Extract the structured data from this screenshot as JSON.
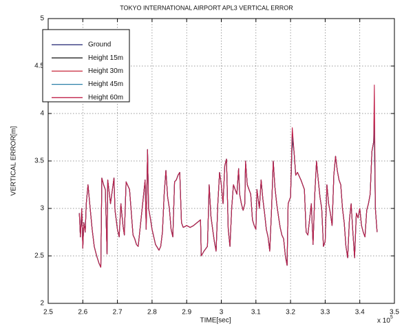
{
  "chart_data": {
    "type": "line",
    "title": "TOKYO INTERNATIONAL AIRPORT APL3 VERTICAL ERROR",
    "x_label": "TIME[sec]",
    "y_label": "VERTICAL ERROR[m]",
    "x_multiplier": {
      "base": "x 10",
      "exponent": "5"
    },
    "xlim": [
      2.5,
      3.5
    ],
    "xticks": [
      2.5,
      2.6,
      2.7,
      2.8,
      2.9,
      3,
      3.1,
      3.2,
      3.3,
      3.4,
      3.5
    ],
    "ylim": [
      2,
      5
    ],
    "yticks": [
      2,
      2.5,
      3,
      3.5,
      4,
      4.5,
      5
    ],
    "grid": true,
    "legend": "upper left",
    "x": [
      2.59,
      2.593,
      2.597,
      2.6,
      2.603,
      2.607,
      2.61,
      2.615,
      2.62,
      2.627,
      2.633,
      2.64,
      2.647,
      2.652,
      2.655,
      2.66,
      2.665,
      2.67,
      2.672,
      2.68,
      2.69,
      2.693,
      2.7,
      2.705,
      2.71,
      2.716,
      2.72,
      2.725,
      2.735,
      2.745,
      2.75,
      2.755,
      2.76,
      2.77,
      2.78,
      2.783,
      2.787,
      2.79,
      2.795,
      2.8,
      2.81,
      2.82,
      2.825,
      2.83,
      2.835,
      2.84,
      2.845,
      2.85,
      2.855,
      2.86,
      2.865,
      2.87,
      2.875,
      2.88,
      2.885,
      2.89,
      2.9,
      2.91,
      2.92,
      2.93,
      2.94,
      2.942,
      2.95,
      2.96,
      2.965,
      2.97,
      2.975,
      2.98,
      2.985,
      2.99,
      2.995,
      3.0,
      3.005,
      3.01,
      3.015,
      3.02,
      3.025,
      3.03,
      3.035,
      3.04,
      3.045,
      3.05,
      3.053,
      3.058,
      3.063,
      3.068,
      3.07,
      3.075,
      3.085,
      3.09,
      3.095,
      3.1,
      3.103,
      3.11,
      3.115,
      3.12,
      3.125,
      3.13,
      3.135,
      3.14,
      3.145,
      3.15,
      3.155,
      3.16,
      3.165,
      3.17,
      3.175,
      3.18,
      3.185,
      3.19,
      3.193,
      3.2,
      3.205,
      3.21,
      3.215,
      3.22,
      3.23,
      3.24,
      3.245,
      3.25,
      3.26,
      3.265,
      3.27,
      3.275,
      3.28,
      3.285,
      3.29,
      3.295,
      3.3,
      3.305,
      3.31,
      3.315,
      3.32,
      3.325,
      3.33,
      3.335,
      3.34,
      3.345,
      3.35,
      3.355,
      3.36,
      3.365,
      3.37,
      3.375,
      3.38,
      3.385,
      3.39,
      3.395,
      3.4,
      3.405,
      3.41,
      3.415,
      3.42,
      3.425,
      3.43,
      3.435,
      3.44,
      3.442,
      3.445,
      3.45
    ],
    "series": [
      {
        "name": "Ground",
        "color": "#1a1f6e",
        "values": [
          2.95,
          2.7,
          3.0,
          2.58,
          2.85,
          2.75,
          3.05,
          3.25,
          3.05,
          2.78,
          2.6,
          2.5,
          2.42,
          2.38,
          3.32,
          3.25,
          3.2,
          2.52,
          3.3,
          3.05,
          3.32,
          2.98,
          2.78,
          2.7,
          3.05,
          2.82,
          2.72,
          3.28,
          3.2,
          2.72,
          2.68,
          2.62,
          2.6,
          2.95,
          3.3,
          2.78,
          3.62,
          3.0,
          2.9,
          2.78,
          2.62,
          2.56,
          2.6,
          2.75,
          3.15,
          3.4,
          3.12,
          3.0,
          2.78,
          2.7,
          3.28,
          3.3,
          3.35,
          3.38,
          2.85,
          2.8,
          2.82,
          2.8,
          2.82,
          2.85,
          2.88,
          2.5,
          2.55,
          2.6,
          3.25,
          2.92,
          2.78,
          2.65,
          2.55,
          3.05,
          3.38,
          3.25,
          3.05,
          3.45,
          3.52,
          2.78,
          2.6,
          3.0,
          3.25,
          3.2,
          3.15,
          3.42,
          3.15,
          3.05,
          2.98,
          3.05,
          3.5,
          3.25,
          3.15,
          2.88,
          2.82,
          2.78,
          3.2,
          3.0,
          3.3,
          3.1,
          2.95,
          2.78,
          2.7,
          2.55,
          2.98,
          3.5,
          3.22,
          3.05,
          2.92,
          2.8,
          2.72,
          2.68,
          2.5,
          2.4,
          3.05,
          3.12,
          3.72,
          3.6,
          3.35,
          3.38,
          3.3,
          3.2,
          2.75,
          2.72,
          3.05,
          2.62,
          3.15,
          3.5,
          3.3,
          3.12,
          3.0,
          2.6,
          2.65,
          3.25,
          3.05,
          2.95,
          2.82,
          3.35,
          3.55,
          3.4,
          3.3,
          3.25,
          3.0,
          2.85,
          2.6,
          2.48,
          2.88,
          3.05,
          2.75,
          2.48,
          2.95,
          2.9,
          3.0,
          2.82,
          2.75,
          2.7,
          2.98,
          3.05,
          3.15,
          3.6,
          3.7,
          3.72,
          3.0,
          2.75
        ]
      },
      {
        "name": "Height 15m",
        "color": "#222222",
        "values": [
          2.95,
          2.7,
          3.0,
          2.58,
          2.85,
          2.75,
          3.05,
          3.25,
          3.05,
          2.78,
          2.6,
          2.5,
          2.42,
          2.38,
          3.32,
          3.25,
          3.2,
          2.52,
          3.3,
          3.05,
          3.32,
          2.98,
          2.78,
          2.7,
          3.05,
          2.82,
          2.72,
          3.28,
          3.2,
          2.72,
          2.68,
          2.62,
          2.6,
          2.95,
          3.3,
          2.78,
          3.62,
          3.0,
          2.9,
          2.78,
          2.62,
          2.56,
          2.6,
          2.75,
          3.15,
          3.4,
          3.12,
          3.0,
          2.78,
          2.7,
          3.28,
          3.3,
          3.35,
          3.38,
          2.85,
          2.8,
          2.82,
          2.8,
          2.82,
          2.85,
          2.88,
          2.5,
          2.55,
          2.6,
          3.25,
          2.92,
          2.78,
          2.65,
          2.55,
          3.05,
          3.38,
          3.25,
          3.05,
          3.45,
          3.52,
          2.78,
          2.6,
          3.0,
          3.25,
          3.2,
          3.15,
          3.42,
          3.15,
          3.05,
          2.98,
          3.05,
          3.5,
          3.25,
          3.15,
          2.88,
          2.82,
          2.78,
          3.2,
          3.0,
          3.3,
          3.1,
          2.95,
          2.78,
          2.7,
          2.55,
          2.98,
          3.5,
          3.22,
          3.05,
          2.92,
          2.8,
          2.72,
          2.68,
          2.5,
          2.4,
          3.05,
          3.12,
          3.75,
          3.6,
          3.35,
          3.38,
          3.3,
          3.2,
          2.75,
          2.72,
          3.05,
          2.62,
          3.15,
          3.5,
          3.3,
          3.12,
          3.0,
          2.6,
          2.65,
          3.25,
          3.05,
          2.95,
          2.82,
          3.35,
          3.55,
          3.4,
          3.3,
          3.25,
          3.0,
          2.85,
          2.6,
          2.48,
          2.88,
          3.05,
          2.75,
          2.48,
          2.95,
          2.9,
          3.0,
          2.82,
          2.75,
          2.7,
          2.98,
          3.05,
          3.15,
          3.6,
          3.7,
          3.78,
          3.0,
          2.75
        ]
      },
      {
        "name": "Height 30m",
        "color": "#c8283c",
        "values": [
          2.95,
          2.7,
          3.0,
          2.58,
          2.85,
          2.75,
          3.05,
          3.25,
          3.05,
          2.78,
          2.6,
          2.5,
          2.42,
          2.38,
          3.32,
          3.25,
          3.2,
          2.52,
          3.3,
          3.05,
          3.32,
          2.98,
          2.78,
          2.7,
          3.05,
          2.82,
          2.72,
          3.28,
          3.2,
          2.72,
          2.68,
          2.62,
          2.6,
          2.95,
          3.3,
          2.78,
          3.62,
          3.0,
          2.9,
          2.78,
          2.62,
          2.56,
          2.6,
          2.75,
          3.15,
          3.4,
          3.12,
          3.0,
          2.78,
          2.7,
          3.28,
          3.3,
          3.35,
          3.38,
          2.85,
          2.8,
          2.82,
          2.8,
          2.82,
          2.85,
          2.88,
          2.5,
          2.55,
          2.6,
          3.25,
          2.92,
          2.78,
          2.65,
          2.55,
          3.05,
          3.38,
          3.25,
          3.05,
          3.45,
          3.52,
          2.78,
          2.6,
          3.0,
          3.25,
          3.2,
          3.15,
          3.42,
          3.15,
          3.05,
          2.98,
          3.05,
          3.5,
          3.25,
          3.15,
          2.88,
          2.82,
          2.78,
          3.2,
          3.0,
          3.3,
          3.1,
          2.95,
          2.78,
          2.7,
          2.55,
          2.98,
          3.5,
          3.22,
          3.05,
          2.92,
          2.8,
          2.72,
          2.68,
          2.5,
          2.4,
          3.05,
          3.12,
          3.82,
          3.6,
          3.35,
          3.38,
          3.3,
          3.2,
          2.75,
          2.72,
          3.05,
          2.62,
          3.15,
          3.5,
          3.3,
          3.12,
          3.0,
          2.6,
          2.65,
          3.25,
          3.05,
          2.95,
          2.82,
          3.35,
          3.55,
          3.4,
          3.3,
          3.25,
          3.0,
          2.85,
          2.6,
          2.48,
          2.88,
          3.05,
          2.75,
          2.48,
          2.95,
          2.9,
          3.0,
          2.82,
          2.75,
          2.7,
          2.98,
          3.05,
          3.15,
          3.6,
          3.7,
          4.05,
          3.0,
          2.75
        ]
      },
      {
        "name": "Height 45m",
        "color": "#2a7fa8",
        "values": [
          2.95,
          2.7,
          3.0,
          2.58,
          2.85,
          2.75,
          3.05,
          3.25,
          3.05,
          2.78,
          2.6,
          2.5,
          2.42,
          2.38,
          3.32,
          3.25,
          3.2,
          2.52,
          3.3,
          3.05,
          3.32,
          2.98,
          2.78,
          2.7,
          3.05,
          2.82,
          2.72,
          3.28,
          3.2,
          2.72,
          2.68,
          2.62,
          2.6,
          2.95,
          3.3,
          2.78,
          3.62,
          3.0,
          2.9,
          2.78,
          2.62,
          2.56,
          2.6,
          2.75,
          3.15,
          3.4,
          3.12,
          3.0,
          2.78,
          2.7,
          3.28,
          3.3,
          3.35,
          3.38,
          2.85,
          2.8,
          2.82,
          2.8,
          2.82,
          2.85,
          2.88,
          2.5,
          2.55,
          2.6,
          3.25,
          2.92,
          2.78,
          2.65,
          2.55,
          3.05,
          3.38,
          3.25,
          3.05,
          3.45,
          3.52,
          2.78,
          2.6,
          3.0,
          3.25,
          3.2,
          3.15,
          3.42,
          3.15,
          3.05,
          2.98,
          3.05,
          3.5,
          3.25,
          3.15,
          2.88,
          2.82,
          2.78,
          3.2,
          3.0,
          3.3,
          3.1,
          2.95,
          2.78,
          2.7,
          2.55,
          2.98,
          3.5,
          3.22,
          3.05,
          2.92,
          2.8,
          2.72,
          2.68,
          2.5,
          2.4,
          3.05,
          3.12,
          3.78,
          3.6,
          3.35,
          3.38,
          3.3,
          3.2,
          2.75,
          2.72,
          3.05,
          2.62,
          3.15,
          3.5,
          3.3,
          3.12,
          3.0,
          2.6,
          2.65,
          3.25,
          3.05,
          2.95,
          2.82,
          3.35,
          3.55,
          3.4,
          3.3,
          3.25,
          3.0,
          2.85,
          2.6,
          2.48,
          2.88,
          3.05,
          2.75,
          2.48,
          2.95,
          2.9,
          3.0,
          2.82,
          2.75,
          2.7,
          2.98,
          3.05,
          3.15,
          3.6,
          3.7,
          3.9,
          3.0,
          2.75
        ]
      },
      {
        "name": "Height 60m",
        "color": "#c0204a",
        "values": [
          2.95,
          2.7,
          3.0,
          2.58,
          2.85,
          2.75,
          3.05,
          3.25,
          3.05,
          2.78,
          2.6,
          2.5,
          2.42,
          2.38,
          3.32,
          3.25,
          3.2,
          2.52,
          3.3,
          3.05,
          3.32,
          2.98,
          2.78,
          2.7,
          3.05,
          2.82,
          2.72,
          3.28,
          3.2,
          2.72,
          2.68,
          2.62,
          2.6,
          2.95,
          3.3,
          2.78,
          3.62,
          3.0,
          2.9,
          2.78,
          2.62,
          2.56,
          2.6,
          2.75,
          3.15,
          3.4,
          3.12,
          3.0,
          2.78,
          2.7,
          3.28,
          3.3,
          3.35,
          3.38,
          2.85,
          2.8,
          2.82,
          2.8,
          2.82,
          2.85,
          2.88,
          2.5,
          2.55,
          2.6,
          3.25,
          2.92,
          2.78,
          2.65,
          2.55,
          3.05,
          3.38,
          3.25,
          3.05,
          3.45,
          3.52,
          2.78,
          2.6,
          3.0,
          3.25,
          3.2,
          3.15,
          3.42,
          3.15,
          3.05,
          2.98,
          3.05,
          3.5,
          3.25,
          3.15,
          2.88,
          2.82,
          2.78,
          3.2,
          3.0,
          3.3,
          3.1,
          2.95,
          2.78,
          2.7,
          2.55,
          2.98,
          3.5,
          3.22,
          3.05,
          2.92,
          2.8,
          2.72,
          2.68,
          2.5,
          2.4,
          3.05,
          3.12,
          3.85,
          3.6,
          3.35,
          3.38,
          3.3,
          3.2,
          2.75,
          2.72,
          3.05,
          2.62,
          3.15,
          3.5,
          3.3,
          3.12,
          3.0,
          2.6,
          2.65,
          3.25,
          3.05,
          2.95,
          2.82,
          3.35,
          3.55,
          3.4,
          3.3,
          3.25,
          3.0,
          2.85,
          2.6,
          2.48,
          2.88,
          3.05,
          2.75,
          2.48,
          2.95,
          2.9,
          3.0,
          2.82,
          2.75,
          2.7,
          2.98,
          3.05,
          3.15,
          3.6,
          3.7,
          4.3,
          3.0,
          2.75
        ]
      }
    ]
  }
}
